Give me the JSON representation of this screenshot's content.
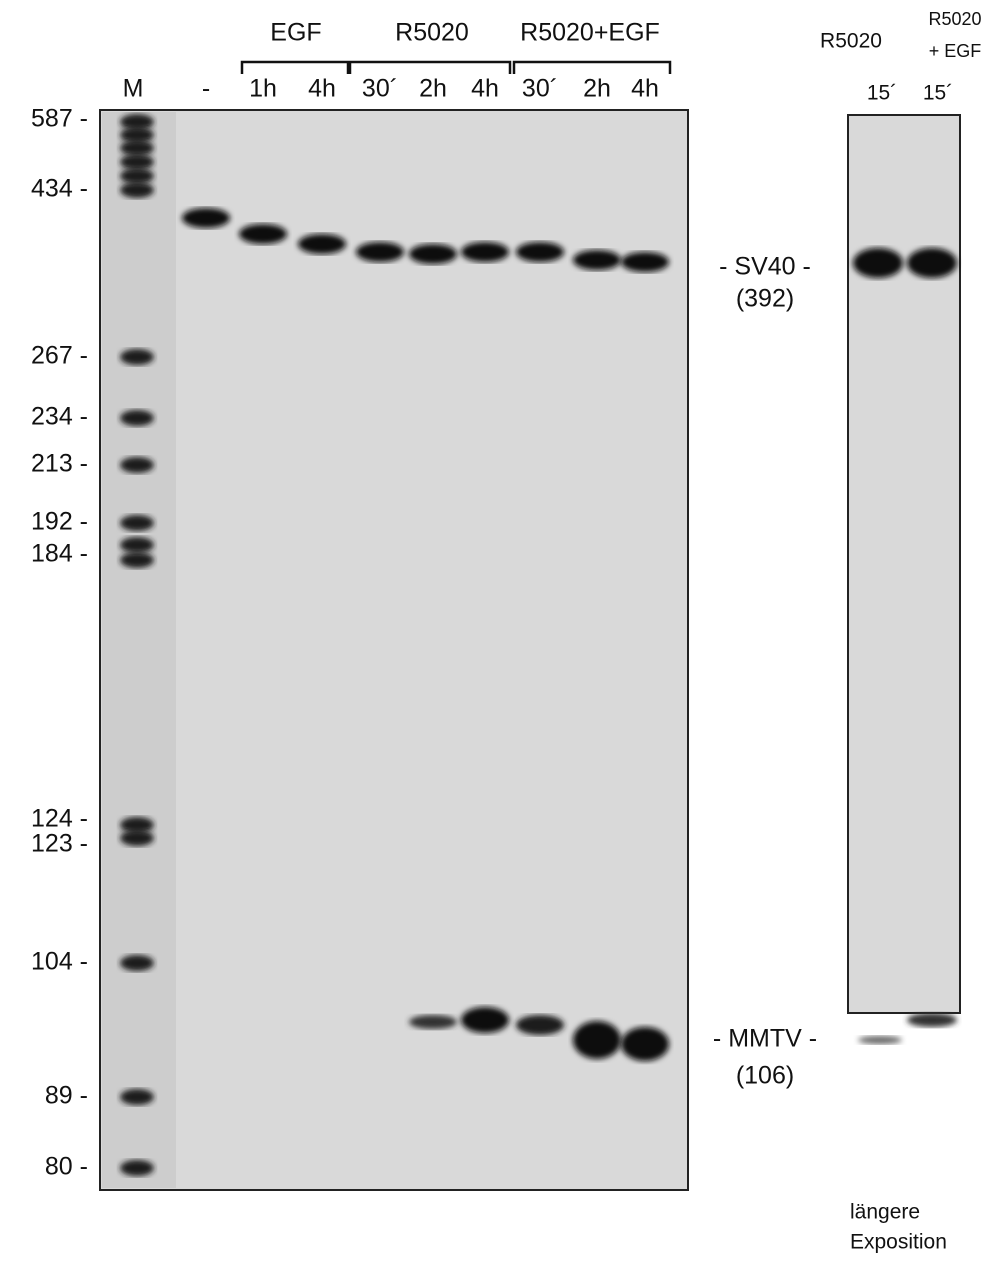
{
  "header": {
    "groups": [
      "EGF",
      "R5020",
      "R5020+EGF"
    ],
    "lanes": [
      "M",
      "-",
      "1h",
      "4h",
      "30´",
      "2h",
      "4h",
      "30´",
      "2h",
      "4h"
    ]
  },
  "markers": [
    "587 -",
    "434 -",
    "267 -",
    "234 -",
    "213 -",
    "192 -",
    "184 -",
    "124 -",
    "123 -",
    "104 -",
    "89 -",
    "80 -"
  ],
  "bands": [
    {
      "label": "- SV40 -",
      "size": "(392)"
    },
    {
      "label": "- MMTV -",
      "size": "(106)"
    }
  ],
  "right_panel": {
    "headers": [
      "R5020",
      "R5020",
      "+ EGF"
    ],
    "lanes": [
      "15´",
      "15´"
    ],
    "note": [
      "längere",
      "Exposition"
    ]
  }
}
